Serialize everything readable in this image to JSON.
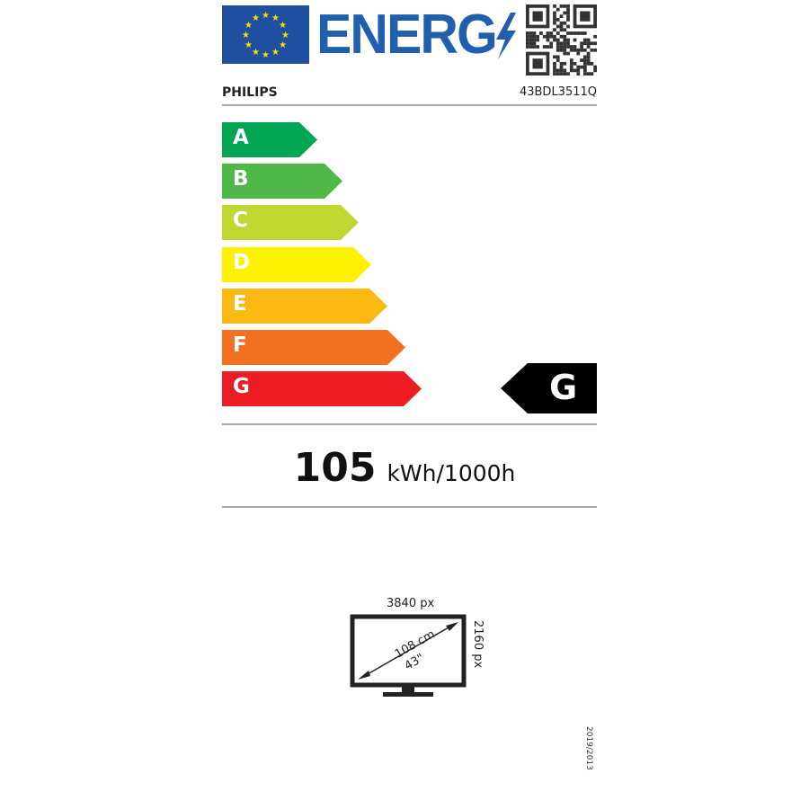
{
  "header": {
    "title": "ENERG",
    "brand": "PHILIPS",
    "model": "43BDL3511Q"
  },
  "scale": {
    "classes": [
      {
        "label": "A",
        "color": "#00a651"
      },
      {
        "label": "B",
        "color": "#50b848"
      },
      {
        "label": "C",
        "color": "#bfd730"
      },
      {
        "label": "D",
        "color": "#fff200"
      },
      {
        "label": "E",
        "color": "#fdb913"
      },
      {
        "label": "F",
        "color": "#f37021"
      },
      {
        "label": "G",
        "color": "#ed1c24"
      }
    ],
    "rating": "G",
    "rating_color": "#000000"
  },
  "consumption": {
    "value": "105",
    "unit": "kWh/1000h"
  },
  "screen": {
    "width_px": "3840 px",
    "height_px": "2160 px",
    "diagonal_cm": "108 cm",
    "diagonal_in": "43\""
  },
  "regulation": "2019/2013",
  "colors": {
    "energ_blue": "#1f5fae",
    "eu_blue": "#1f4fa0",
    "star_yellow": "#ffdd00"
  }
}
